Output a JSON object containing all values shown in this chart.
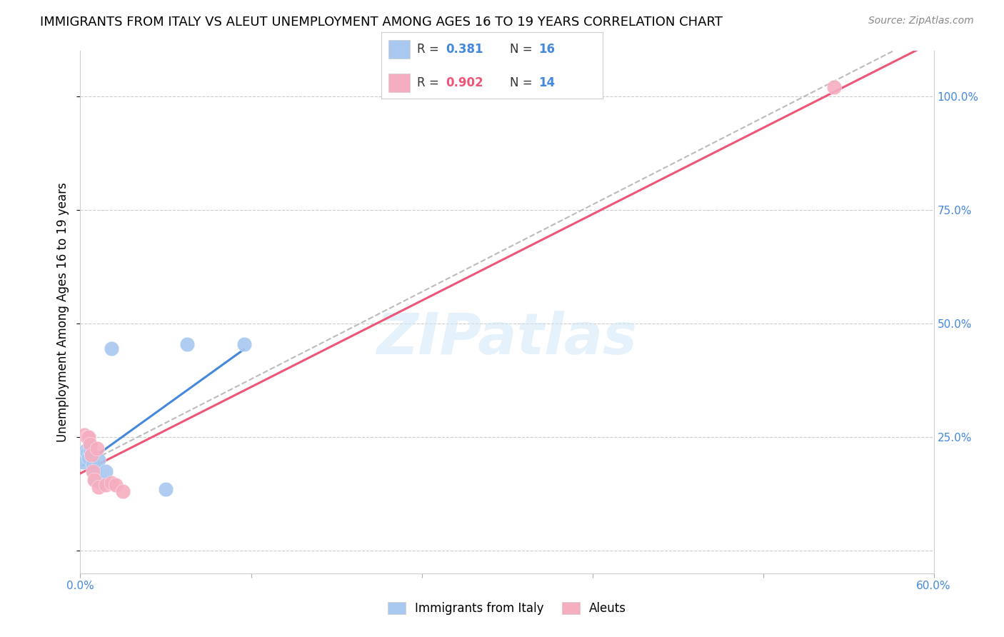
{
  "title": "IMMIGRANTS FROM ITALY VS ALEUT UNEMPLOYMENT AMONG AGES 16 TO 19 YEARS CORRELATION CHART",
  "source": "Source: ZipAtlas.com",
  "ylabel": "Unemployment Among Ages 16 to 19 years",
  "xlim": [
    0.0,
    0.6
  ],
  "ylim": [
    -0.05,
    1.1
  ],
  "x_ticks": [
    0.0,
    0.12,
    0.24,
    0.36,
    0.48,
    0.6
  ],
  "y_ticks": [
    0.0,
    0.25,
    0.5,
    0.75,
    1.0
  ],
  "italy_x": [
    0.002,
    0.004,
    0.005,
    0.006,
    0.007,
    0.008,
    0.009,
    0.01,
    0.011,
    0.013,
    0.015,
    0.018,
    0.022,
    0.06,
    0.075,
    0.115
  ],
  "italy_y": [
    0.195,
    0.22,
    0.215,
    0.205,
    0.22,
    0.21,
    0.19,
    0.175,
    0.155,
    0.2,
    0.15,
    0.175,
    0.445,
    0.135,
    0.455,
    0.455
  ],
  "aleut_x": [
    0.003,
    0.005,
    0.006,
    0.007,
    0.008,
    0.009,
    0.01,
    0.012,
    0.013,
    0.018,
    0.022,
    0.025,
    0.03,
    0.53
  ],
  "aleut_y": [
    0.255,
    0.25,
    0.25,
    0.235,
    0.21,
    0.175,
    0.155,
    0.225,
    0.14,
    0.145,
    0.15,
    0.145,
    0.13,
    1.02
  ],
  "italy_R": 0.381,
  "italy_N": 16,
  "aleut_R": 0.902,
  "aleut_N": 14,
  "italy_color": "#a8c8f0",
  "aleut_color": "#f5aec0",
  "italy_line_color": "#4488dd",
  "aleut_line_color": "#ee5577",
  "gray_line_color": "#bbbbbb",
  "background_color": "#ffffff",
  "watermark": "ZIPatlas",
  "title_fontsize": 13,
  "axis_label_fontsize": 12,
  "tick_fontsize": 11,
  "tick_color": "#4488dd"
}
